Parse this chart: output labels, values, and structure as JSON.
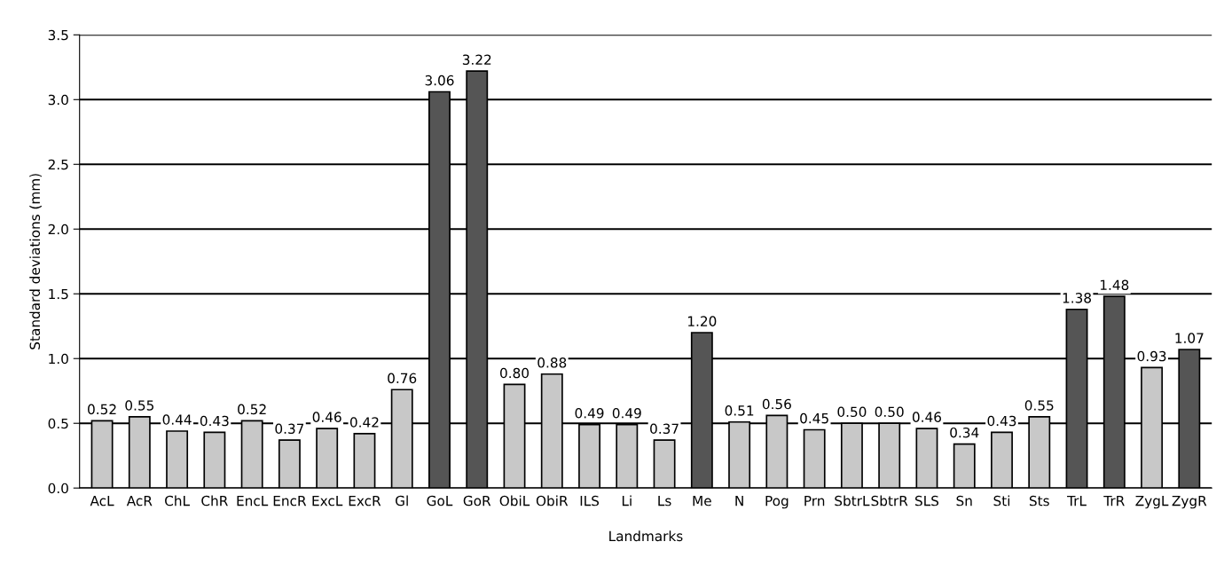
{
  "chart_data": {
    "type": "bar",
    "xlabel": "Landmarks",
    "ylabel": "Standard deviations (mm)",
    "categories": [
      "AcL",
      "AcR",
      "ChL",
      "ChR",
      "EncL",
      "EncR",
      "ExcL",
      "ExcR",
      "Gl",
      "GoL",
      "GoR",
      "ObiL",
      "ObiR",
      "ILS",
      "Li",
      "Ls",
      "Me",
      "N",
      "Pog",
      "Prn",
      "SbtrL",
      "SbtrR",
      "SLS",
      "Sn",
      "Sti",
      "Sts",
      "TrL",
      "TrR",
      "ZygL",
      "ZygR"
    ],
    "values": [
      0.52,
      0.55,
      0.44,
      0.43,
      0.52,
      0.37,
      0.46,
      0.42,
      0.76,
      3.06,
      3.22,
      0.8,
      0.88,
      0.49,
      0.49,
      0.37,
      1.2,
      0.51,
      0.56,
      0.45,
      0.5,
      0.5,
      0.46,
      0.34,
      0.43,
      0.55,
      1.38,
      1.48,
      0.93,
      1.07
    ],
    "value_labels": [
      "0.52",
      "0.55",
      "0.44",
      "0.43",
      "0.52",
      "0.37",
      "0.46",
      "0.42",
      "0.76",
      "3.06",
      "3.22",
      "0.80",
      "0.88",
      "0.49",
      "0.49",
      "0.37",
      "1.20",
      "0.51",
      "0.56",
      "0.45",
      "0.50",
      "0.50",
      "0.46",
      "0.34",
      "0.43",
      "0.55",
      "1.38",
      "1.48",
      "0.93",
      "1.07"
    ],
    "colors": [
      "#c8c8c8",
      "#c8c8c8",
      "#c8c8c8",
      "#c8c8c8",
      "#c8c8c8",
      "#c8c8c8",
      "#c8c8c8",
      "#c8c8c8",
      "#c8c8c8",
      "#555555",
      "#555555",
      "#c8c8c8",
      "#c8c8c8",
      "#c8c8c8",
      "#c8c8c8",
      "#c8c8c8",
      "#555555",
      "#c8c8c8",
      "#c8c8c8",
      "#c8c8c8",
      "#c8c8c8",
      "#c8c8c8",
      "#c8c8c8",
      "#c8c8c8",
      "#c8c8c8",
      "#c8c8c8",
      "#555555",
      "#555555",
      "#c8c8c8",
      "#555555"
    ],
    "ylim": [
      0,
      3.5
    ],
    "yticks": [
      {
        "value": 0,
        "label": "0.0"
      },
      {
        "value": 0.5,
        "label": "0.5"
      },
      {
        "value": 1,
        "label": "1.0"
      },
      {
        "value": 1.5,
        "label": "1.5"
      },
      {
        "value": 2,
        "label": "2.0"
      },
      {
        "value": 2.5,
        "label": "2.5"
      },
      {
        "value": 3,
        "label": "3.0"
      },
      {
        "value": 3.5,
        "label": "3.5"
      }
    ],
    "grid": "y"
  }
}
